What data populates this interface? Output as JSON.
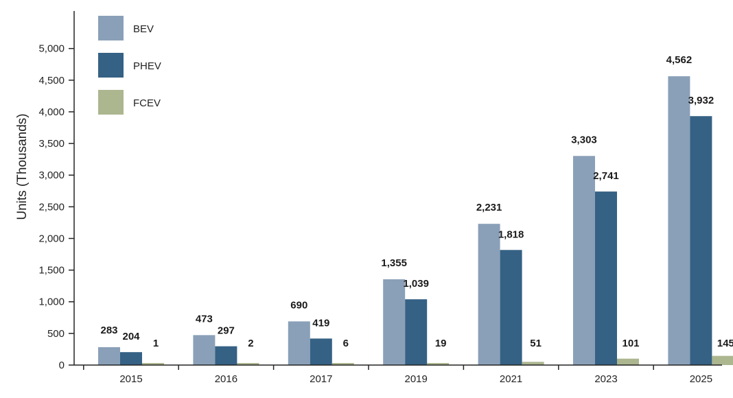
{
  "chart_data": {
    "type": "bar",
    "title": "",
    "xlabel": "",
    "ylabel": "Units (Thousands)",
    "ylim": [
      0,
      5000
    ],
    "yticks": [
      0,
      500,
      1000,
      1500,
      2000,
      2500,
      3000,
      3500,
      4000,
      4500,
      5000
    ],
    "ytick_labels": [
      "0",
      "500",
      "1,000",
      "1,500",
      "2,000",
      "2,500",
      "3,000",
      "3,500",
      "4,000",
      "4,500",
      "5,000"
    ],
    "grid": false,
    "legend_position": "top-left",
    "categories": [
      "2015",
      "2016",
      "2017",
      "2019",
      "2021",
      "2023",
      "2025"
    ],
    "series": [
      {
        "name": "BEV",
        "color": "#8aa0b8",
        "values": [
          283,
          473,
          690,
          1355,
          2231,
          3303,
          4562
        ],
        "labels": [
          "283",
          "473",
          "690",
          "1,355",
          "2,231",
          "3,303",
          "4,562"
        ]
      },
      {
        "name": "PHEV",
        "color": "#356184",
        "values": [
          204,
          297,
          419,
          1039,
          1818,
          2741,
          3932
        ],
        "labels": [
          "204",
          "297",
          "419",
          "1,039",
          "1,818",
          "2,741",
          "3,932"
        ]
      },
      {
        "name": "FCEV",
        "color": "#acb68f",
        "values": [
          1,
          2,
          6,
          19,
          51,
          101,
          145
        ],
        "labels": [
          "1",
          "2",
          "6",
          "19",
          "51",
          "101",
          "145"
        ]
      }
    ]
  }
}
